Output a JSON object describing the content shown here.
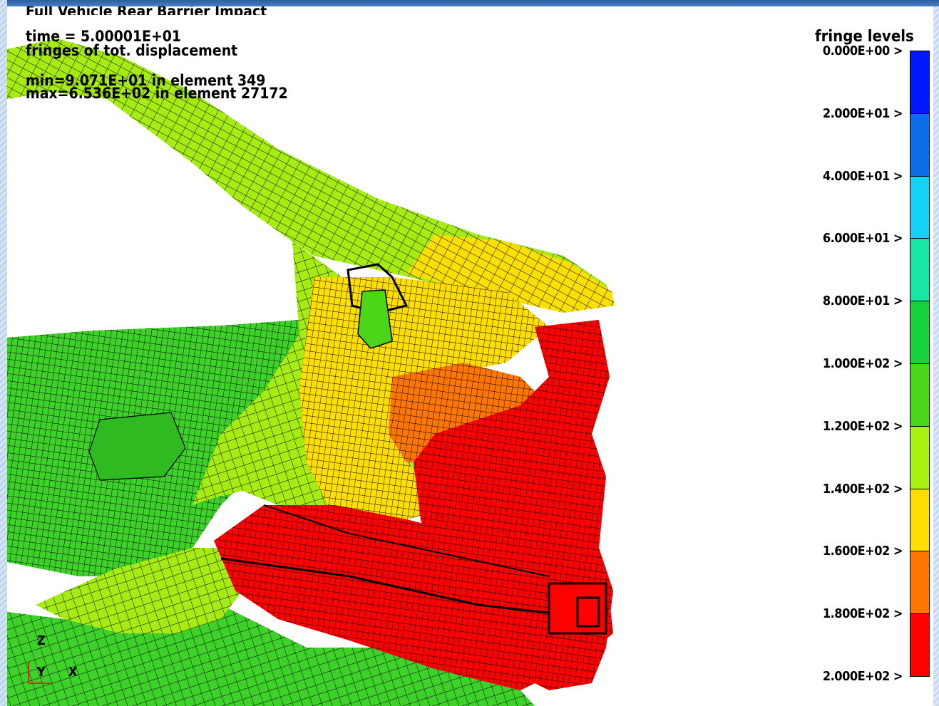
{
  "title": "Full Vehicle Rear Barrier Impact",
  "time_line": "time =  5.00001E+01",
  "fringe_line": "fringes of tot. displacement",
  "min_line": "min=9.071E+01 in element 349",
  "max_line": "max=6.536E+02 in element 27172",
  "legend": {
    "title": "fringe levels",
    "levels": [
      "0.000E+00 >",
      "2.000E+01 >",
      "4.000E+01 >",
      "6.000E+01 >",
      "8.000E+01 >",
      "1.000E+02 >",
      "1.200E+02 >",
      "1.400E+02 >",
      "1.600E+02 >",
      "1.800E+02 >",
      "2.000E+02 >"
    ],
    "colors": [
      "#0018ff",
      "#0b6fe6",
      "#12d2f5",
      "#16e7a6",
      "#15d23a",
      "#4bd61a",
      "#a8f211",
      "#ffde00",
      "#ff7600",
      "#ff0000"
    ]
  },
  "axes": {
    "z": "Z",
    "y": "Y",
    "x": "X"
  }
}
